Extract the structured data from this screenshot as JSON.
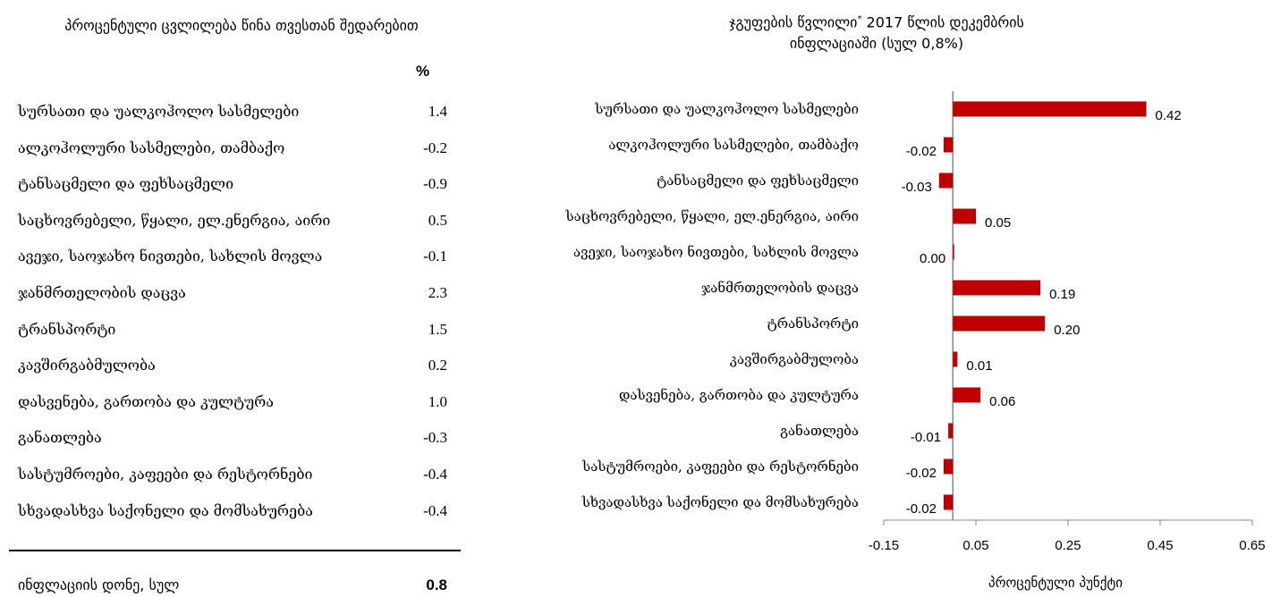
{
  "left_table": {
    "title": "პროცენტული ცვლილება წინა თვესთან შედარებით",
    "unit": "%",
    "rows": [
      {
        "label": "სურსათი და უალკოჰოლო სასმელები",
        "value": "1.4"
      },
      {
        "label": "ალკოჰოლური სასმელები, თამბაქო",
        "value": "-0.2"
      },
      {
        "label": "ტანსაცმელი და ფეხსაცმელი",
        "value": "-0.9"
      },
      {
        "label": "საცხოვრებელი, წყალი, ელ.ენერგია, აირი",
        "value": "0.5"
      },
      {
        "label": "ავეჯი, საოჯახო ნივთები, სახლის მოვლა",
        "value": "-0.1"
      },
      {
        "label": "ჯანმრთელობის დაცვა",
        "value": "2.3"
      },
      {
        "label": "ტრანსპორტი",
        "value": "1.5"
      },
      {
        "label": "კავშირგაბმულობა",
        "value": "0.2"
      },
      {
        "label": "დასვენება, გართობა და კულტურა",
        "value": "1.0"
      },
      {
        "label": "განათლება",
        "value": "-0.3"
      },
      {
        "label": "სასტუმროები, კაფეები და რესტორნები",
        "value": "-0.4"
      },
      {
        "label": "სხვადასხვა საქონელი და მომსახურება",
        "value": "-0.4"
      }
    ],
    "total": {
      "label": "ინფლაციის დონე, სულ",
      "value": "0.8"
    }
  },
  "chart_data": {
    "type": "bar",
    "orientation": "horizontal",
    "title_line1": "ჯგუფების წვლილი",
    "title_mark": "*",
    "title_line1_rest": " 2017 წლის დეკემბრის",
    "title_line2": "ინფლაციაში (სულ 0,8%)",
    "xlabel": "პროცენტული პუნქტი",
    "xlim": [
      -0.15,
      0.65
    ],
    "xticks": [
      "-0.15",
      "0.05",
      "0.25",
      "0.45",
      "0.65"
    ],
    "bar_color": "#c00000",
    "categories": [
      "სურსათი და უალკოჰოლო სასმელები",
      "ალკოჰოლური სასმელები, თამბაქო",
      "ტანსაცმელი და ფეხსაცმელი",
      "საცხოვრებელი, წყალი, ელ.ენერგია, აირი",
      "ავეჯი, საოჯახო ნივთები, სახლის მოვლა",
      "ჯანმრთელობის დაცვა",
      "ტრანსპორტი",
      "კავშირგაბმულობა",
      "დასვენება, გართობა და კულტურა",
      "განათლება",
      "სასტუმროები, კაფეები და რესტორნები",
      "სხვადასხვა საქონელი და მომსახურება"
    ],
    "values": [
      0.42,
      -0.02,
      -0.03,
      0.05,
      0.0,
      0.19,
      0.2,
      0.01,
      0.06,
      -0.01,
      -0.02,
      -0.02
    ],
    "value_labels": [
      "0.42",
      "-0.02",
      "-0.03",
      "0.05",
      "0.00",
      "0.19",
      "0.20",
      "0.01",
      "0.06",
      "-0.01",
      "-0.02",
      "-0.02"
    ]
  }
}
